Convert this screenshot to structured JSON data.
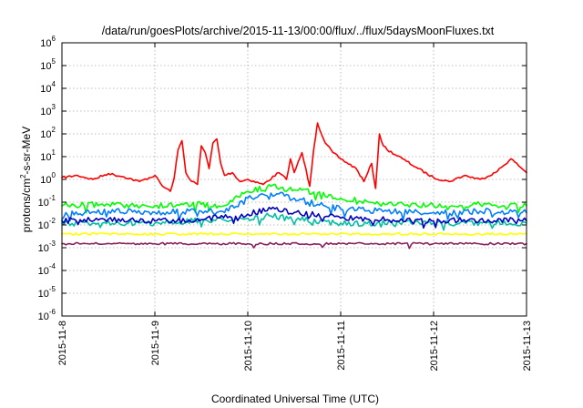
{
  "chart_data": {
    "type": "line",
    "title": "/data/run/goesPlots/archive/2015-11-13/00:00/flux/../flux/5daysMoonFluxes.txt",
    "xlabel": "Coordinated Universal Time (UTC)",
    "ylabel_parts": [
      "protons/cm",
      "2",
      "-s-sr-MeV"
    ],
    "y_scale": "log",
    "ylim": [
      1e-06,
      1000000.0
    ],
    "y_ticks": [
      {
        "base": "10",
        "exp": "-6",
        "value": 1e-06
      },
      {
        "base": "10",
        "exp": "-5",
        "value": 1e-05
      },
      {
        "base": "10",
        "exp": "-4",
        "value": 0.0001
      },
      {
        "base": "10",
        "exp": "-3",
        "value": 0.001
      },
      {
        "base": "10",
        "exp": "-2",
        "value": 0.01
      },
      {
        "base": "10",
        "exp": "-1",
        "value": 0.1
      },
      {
        "base": "10",
        "exp": "0",
        "value": 1
      },
      {
        "base": "10",
        "exp": "1",
        "value": 10
      },
      {
        "base": "10",
        "exp": "2",
        "value": 100
      },
      {
        "base": "10",
        "exp": "3",
        "value": 1000
      },
      {
        "base": "10",
        "exp": "4",
        "value": 10000
      },
      {
        "base": "10",
        "exp": "5",
        "value": 100000
      },
      {
        "base": "10",
        "exp": "6",
        "value": 1000000
      }
    ],
    "x_range": [
      "2015-11-08",
      "2015-11-13"
    ],
    "x_ticks": [
      "2015-11-8",
      "2015-11-9",
      "2015-11-10",
      "2015-11-11",
      "2015-11-12",
      "2015-11-13"
    ],
    "grid": true,
    "series": [
      {
        "color": "#ff0000",
        "x": [
          "2015-11-08 00:00",
          "2015-11-08 04:00",
          "2015-11-08 08:00",
          "2015-11-08 12:00",
          "2015-11-08 16:00",
          "2015-11-08 20:00",
          "2015-11-09 00:00",
          "2015-11-09 02:00",
          "2015-11-09 04:00",
          "2015-11-09 05:00",
          "2015-11-09 06:00",
          "2015-11-09 07:00",
          "2015-11-09 08:00",
          "2015-11-09 09:00",
          "2015-11-09 10:00",
          "2015-11-09 11:00",
          "2015-11-09 12:00",
          "2015-11-09 13:00",
          "2015-11-09 14:00",
          "2015-11-09 15:00",
          "2015-11-09 16:00",
          "2015-11-09 17:00",
          "2015-11-09 18:00",
          "2015-11-09 20:00",
          "2015-11-09 22:00",
          "2015-11-10 00:00",
          "2015-11-10 04:00",
          "2015-11-10 08:00",
          "2015-11-10 10:00",
          "2015-11-10 11:00",
          "2015-11-10 12:00",
          "2015-11-10 14:00",
          "2015-11-10 16:00",
          "2015-11-10 17:00",
          "2015-11-10 18:00",
          "2015-11-10 20:00",
          "2015-11-10 22:00",
          "2015-11-11 00:00",
          "2015-11-11 04:00",
          "2015-11-11 06:00",
          "2015-11-11 07:00",
          "2015-11-11 08:00",
          "2015-11-11 09:00",
          "2015-11-11 10:00",
          "2015-11-11 11:00",
          "2015-11-11 12:00",
          "2015-11-11 16:00",
          "2015-11-11 20:00",
          "2015-11-12 00:00",
          "2015-11-12 04:00",
          "2015-11-12 08:00",
          "2015-11-12 12:00",
          "2015-11-12 16:00",
          "2015-11-12 20:00",
          "2015-11-13 00:00"
        ],
        "values": [
          1.2,
          1.5,
          1.0,
          1.8,
          1.3,
          0.8,
          1.5,
          0.5,
          0.3,
          1.2,
          20,
          50,
          2,
          1,
          0.8,
          0.6,
          30,
          15,
          3,
          40,
          60,
          5,
          1.5,
          2,
          0.8,
          1.0,
          0.6,
          2,
          1,
          8,
          2,
          15,
          0.5,
          20,
          300,
          40,
          15,
          8,
          3,
          0.8,
          2,
          5,
          0.4,
          100,
          30,
          20,
          8,
          3,
          1.2,
          0.8,
          1.5,
          1.0,
          2,
          8,
          2
        ]
      },
      {
        "color": "#00ff00",
        "x": [
          "2015-11-08 00:00",
          "2015-11-08 12:00",
          "2015-11-09 00:00",
          "2015-11-09 12:00",
          "2015-11-09 18:00",
          "2015-11-10 00:00",
          "2015-11-10 06:00",
          "2015-11-10 12:00",
          "2015-11-10 18:00",
          "2015-11-11 00:00",
          "2015-11-11 12:00",
          "2015-11-12 00:00",
          "2015-11-12 12:00",
          "2015-11-13 00:00"
        ],
        "values": [
          0.07,
          0.08,
          0.07,
          0.08,
          0.07,
          0.3,
          0.5,
          0.35,
          0.25,
          0.15,
          0.08,
          0.07,
          0.08,
          0.07
        ]
      },
      {
        "color": "#0080ff",
        "x": [
          "2015-11-08 00:00",
          "2015-11-08 12:00",
          "2015-11-09 00:00",
          "2015-11-09 12:00",
          "2015-11-09 18:00",
          "2015-11-10 00:00",
          "2015-11-10 06:00",
          "2015-11-10 12:00",
          "2015-11-10 18:00",
          "2015-11-11 00:00",
          "2015-11-11 12:00",
          "2015-11-12 00:00",
          "2015-11-12 12:00",
          "2015-11-13 00:00"
        ],
        "values": [
          0.03,
          0.04,
          0.035,
          0.04,
          0.035,
          0.15,
          0.25,
          0.15,
          0.08,
          0.05,
          0.04,
          0.035,
          0.04,
          0.035
        ]
      },
      {
        "color": "#00c0a0",
        "x": [
          "2015-11-08 00:00",
          "2015-11-09 00:00",
          "2015-11-10 00:00",
          "2015-11-10 06:00",
          "2015-11-10 12:00",
          "2015-11-11 00:00",
          "2015-11-12 00:00",
          "2015-11-13 00:00"
        ],
        "values": [
          0.012,
          0.012,
          0.02,
          0.025,
          0.018,
          0.012,
          0.012,
          0.012
        ]
      },
      {
        "color": "#0000c0",
        "x": [
          "2015-11-08 00:00",
          "2015-11-08 12:00",
          "2015-11-09 00:00",
          "2015-11-09 12:00",
          "2015-11-10 00:00",
          "2015-11-10 06:00",
          "2015-11-10 12:00",
          "2015-11-11 00:00",
          "2015-11-11 12:00",
          "2015-11-12 00:00",
          "2015-11-12 12:00",
          "2015-11-13 00:00"
        ],
        "values": [
          0.015,
          0.018,
          0.015,
          0.017,
          0.03,
          0.05,
          0.035,
          0.02,
          0.017,
          0.015,
          0.017,
          0.015
        ]
      },
      {
        "color": "#ffff00",
        "x": [
          "2015-11-08 00:00",
          "2015-11-09 00:00",
          "2015-11-10 00:00",
          "2015-11-11 00:00",
          "2015-11-12 00:00",
          "2015-11-13 00:00"
        ],
        "values": [
          0.004,
          0.004,
          0.004,
          0.004,
          0.004,
          0.004
        ]
      },
      {
        "color": "#8b2060",
        "x": [
          "2015-11-08 00:00",
          "2015-11-08 18:00",
          "2015-11-09 00:00",
          "2015-11-09 12:00",
          "2015-11-10 00:00",
          "2015-11-11 00:00",
          "2015-11-12 00:00",
          "2015-11-13 00:00"
        ],
        "values": [
          0.0015,
          0.0015,
          0.0015,
          0.0015,
          0.0015,
          0.0015,
          0.0015,
          0.0015
        ]
      }
    ]
  }
}
